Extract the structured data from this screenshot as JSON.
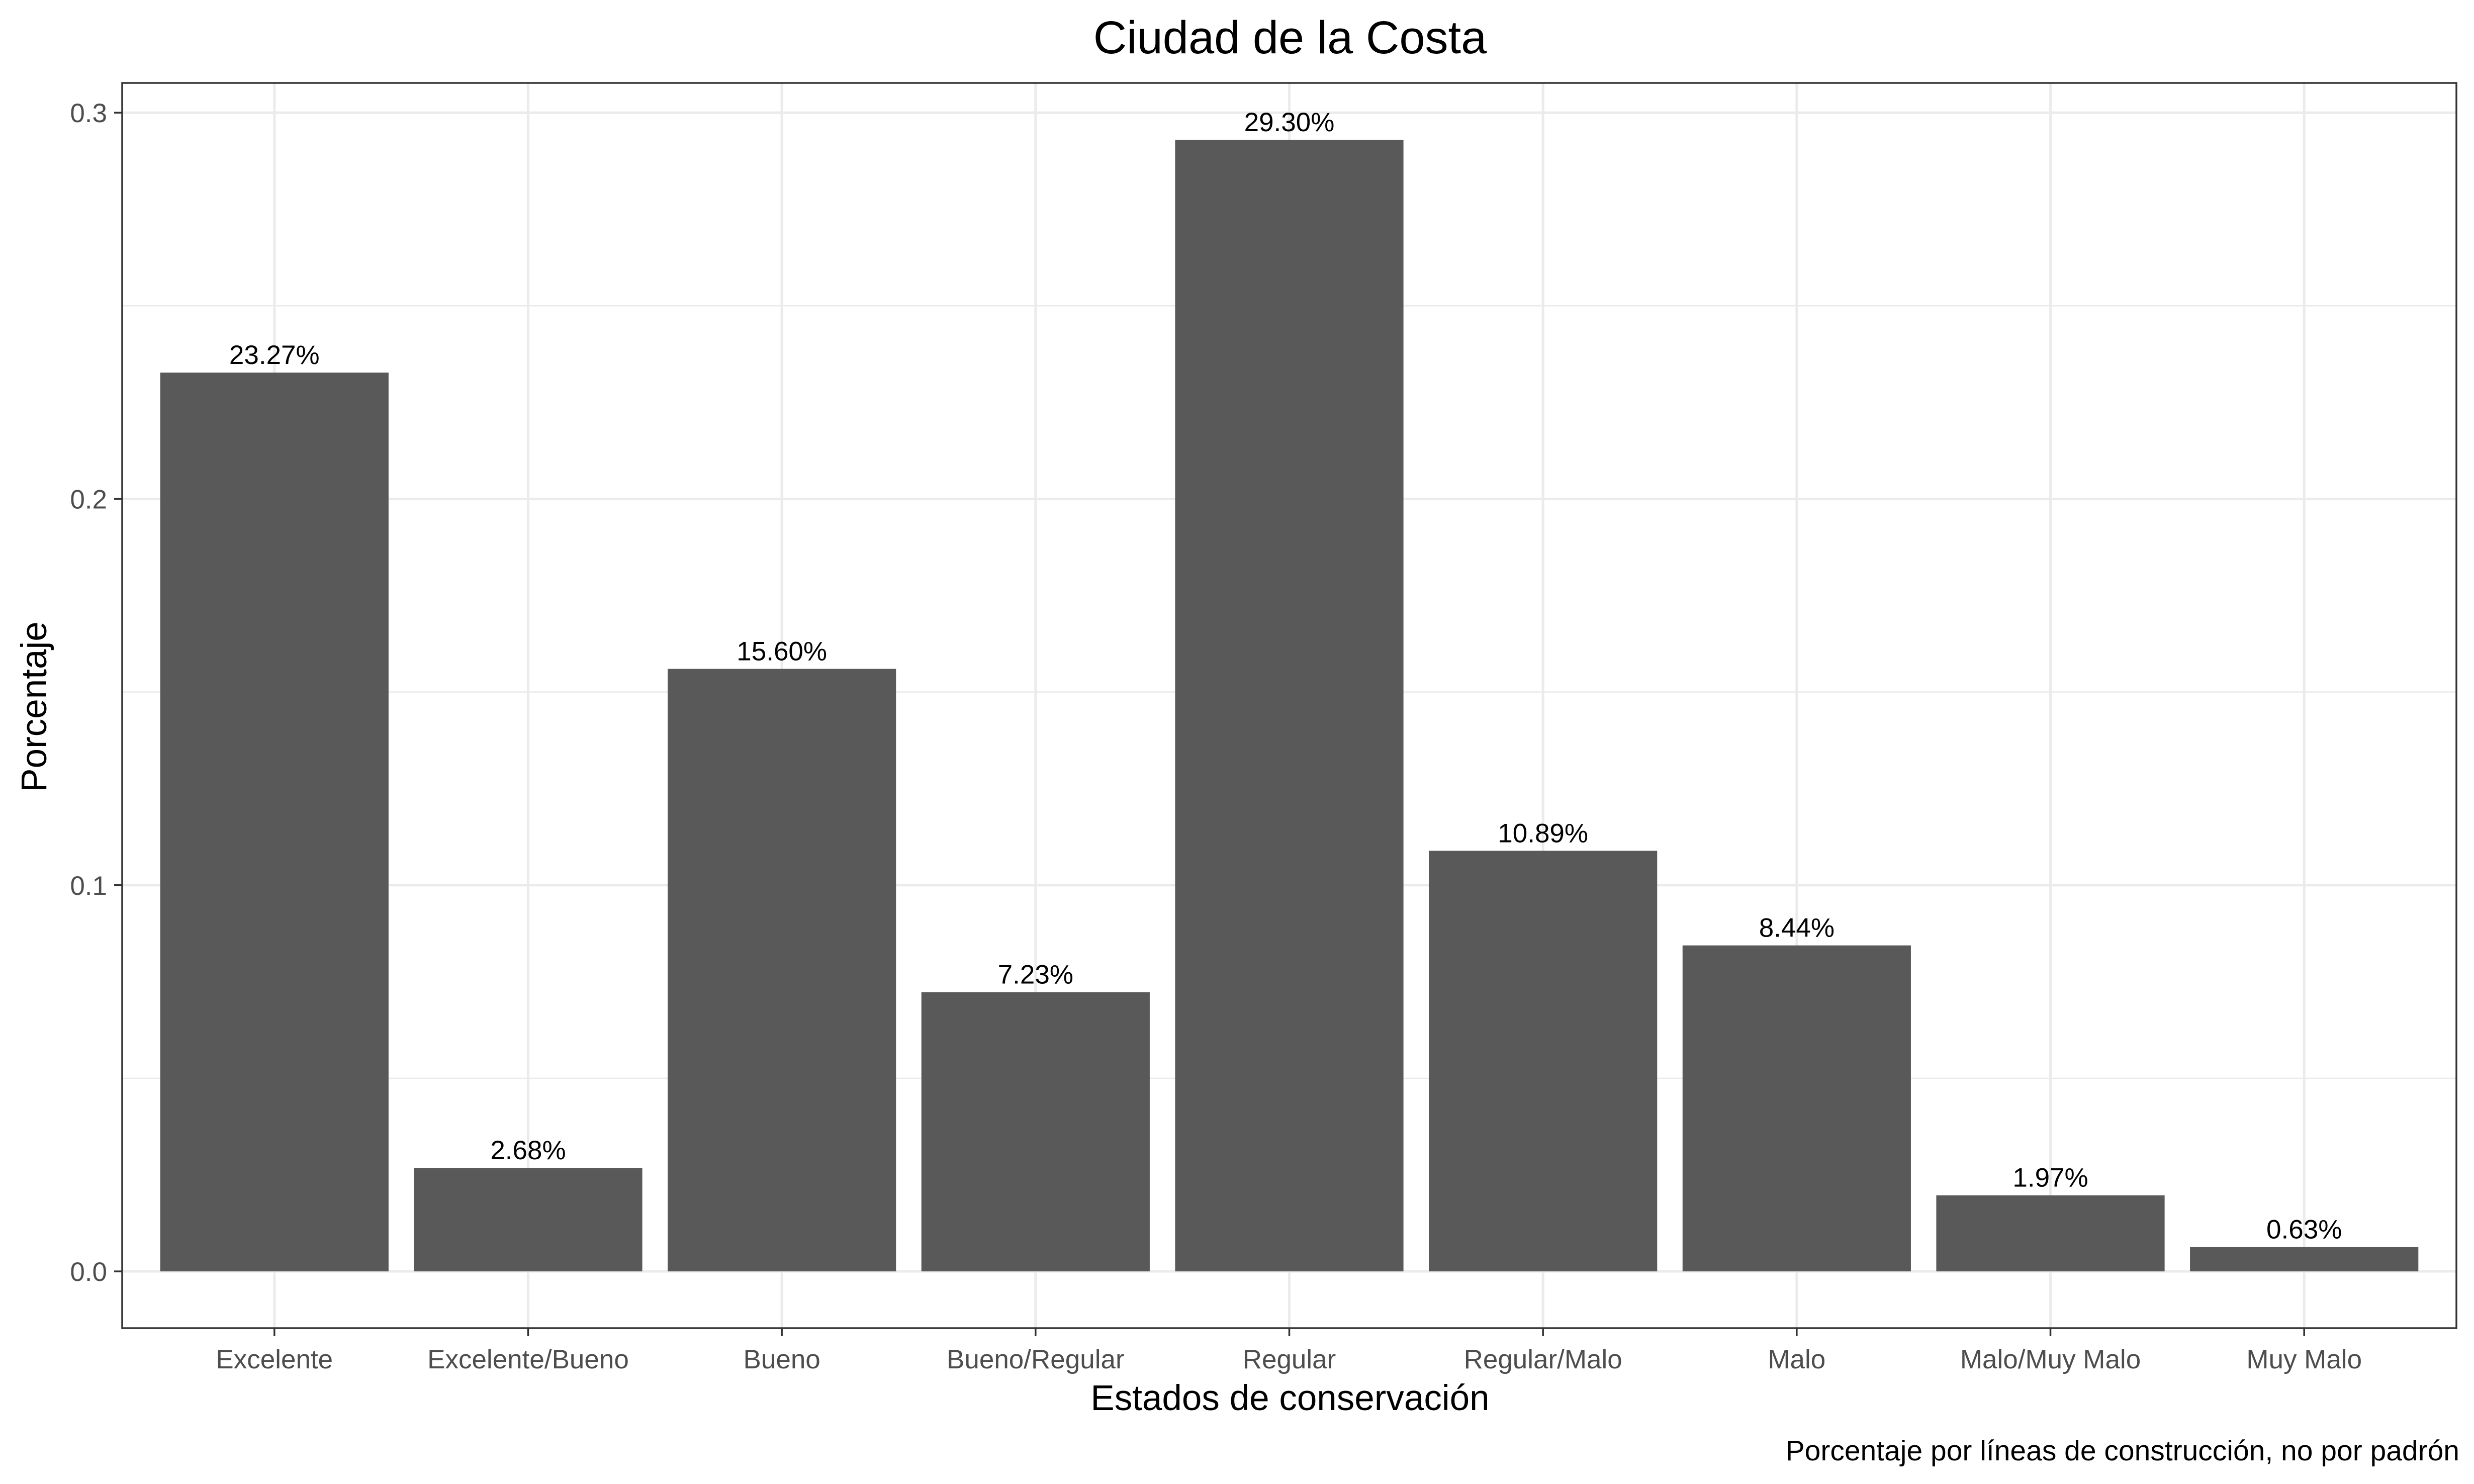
{
  "chart_data": {
    "type": "bar",
    "title": "Ciudad de la Costa",
    "xlabel": "Estados de conservación",
    "ylabel": "Porcentaje",
    "caption": "Porcentaje por líneas de construcción, no por padrón",
    "categories": [
      "Excelente",
      "Excelente/Bueno",
      "Bueno",
      "Bueno/Regular",
      "Regular",
      "Regular/Malo",
      "Malo",
      "Malo/Muy Malo",
      "Muy Malo"
    ],
    "values": [
      0.2327,
      0.0268,
      0.156,
      0.0723,
      0.293,
      0.1089,
      0.0844,
      0.0197,
      0.0063
    ],
    "data_labels": [
      "23.27%",
      "2.68%",
      "15.60%",
      "7.23%",
      "29.30%",
      "10.89%",
      "8.44%",
      "1.97%",
      "0.63%"
    ],
    "yticks": [
      0.0,
      0.1,
      0.2,
      0.3
    ],
    "ytick_labels": [
      "0.0",
      "0.1",
      "0.2",
      "0.3"
    ],
    "ylim": [
      -0.0147,
      0.3077
    ],
    "grid": true,
    "bar_color": "#595959",
    "legend": "none"
  }
}
